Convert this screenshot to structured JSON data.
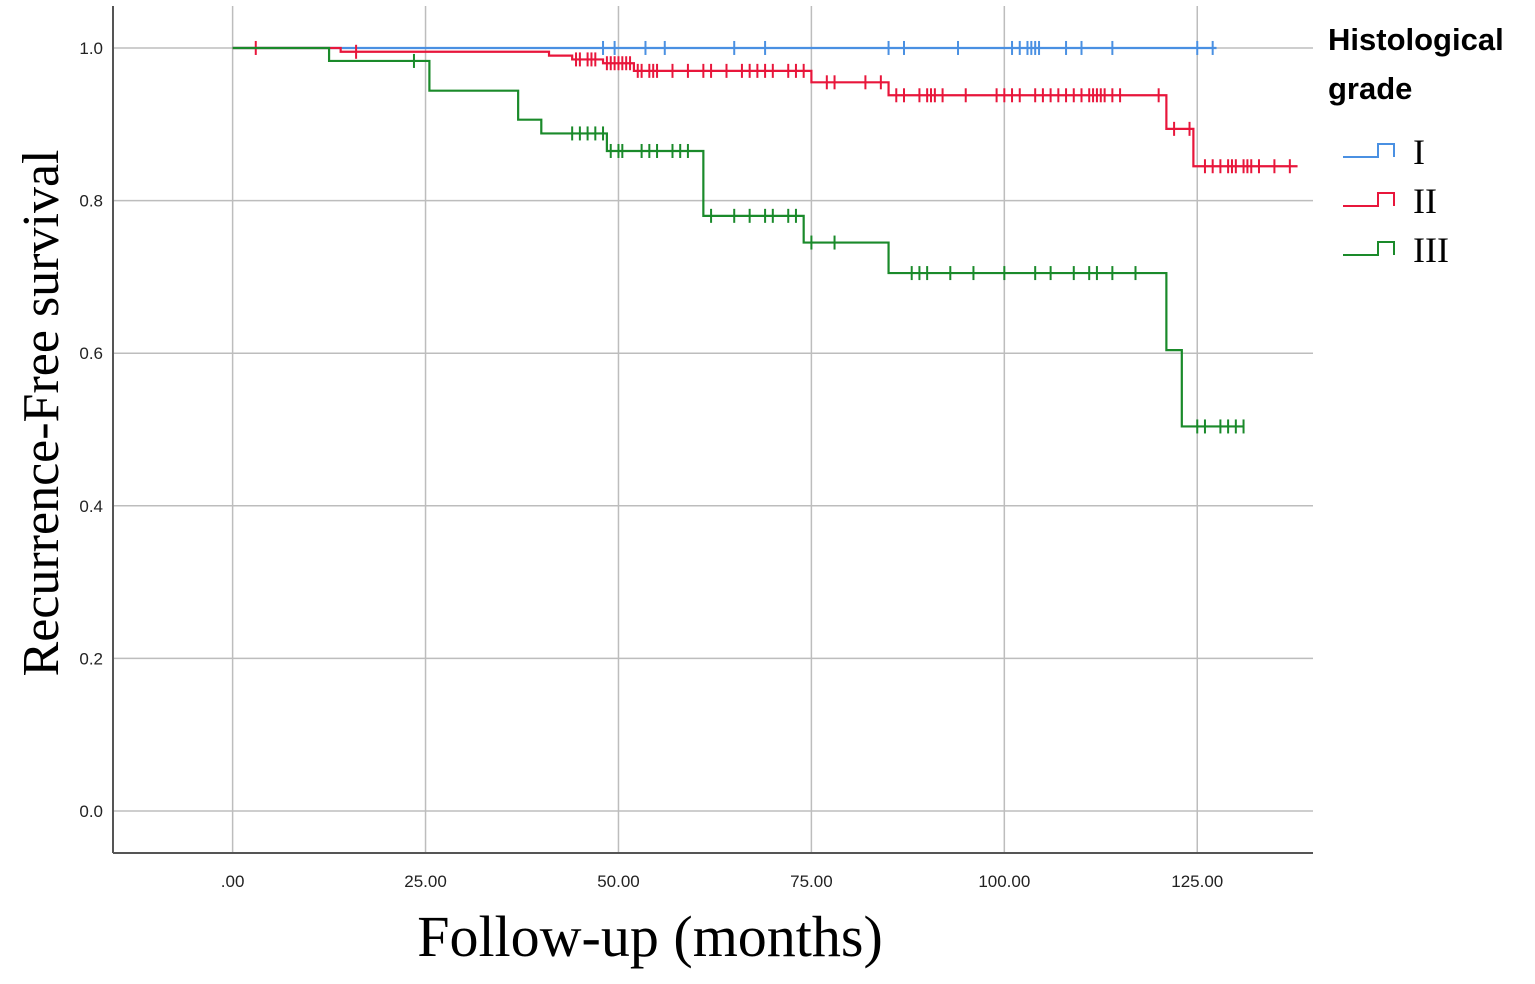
{
  "chart_data": {
    "type": "line",
    "title": "",
    "xlabel": "Follow-up (months)",
    "ylabel": "Recurrence-Free survival",
    "xlim": [
      -15.5,
      140
    ],
    "ylim": [
      -0.055,
      1.055
    ],
    "x_ticks": [
      0,
      25,
      50,
      75,
      100,
      125
    ],
    "x_tick_labels": [
      ".00",
      "25.00",
      "50.00",
      "75.00",
      "100.00",
      "125.00"
    ],
    "y_ticks": [
      0,
      0.2,
      0.4,
      0.6,
      0.8,
      1.0
    ],
    "y_tick_labels": [
      "0.0",
      "0.2",
      "0.4",
      "0.6",
      "0.8",
      "1.0"
    ],
    "grid": true,
    "legend": {
      "title_lines": [
        "Histological",
        "grade"
      ],
      "placement": "right"
    },
    "series": [
      {
        "name": "I",
        "color": "#4a90e2",
        "steps": [
          [
            0,
            1.0
          ]
        ],
        "end_x": 127.5,
        "censored": [
          [
            48,
            1.0
          ],
          [
            49.5,
            1.0
          ],
          [
            53.5,
            1.0
          ],
          [
            56,
            1.0
          ],
          [
            65,
            1.0
          ],
          [
            69,
            1.0
          ],
          [
            85,
            1.0
          ],
          [
            87,
            1.0
          ],
          [
            94,
            1.0
          ],
          [
            101,
            1.0
          ],
          [
            102,
            1.0
          ],
          [
            103,
            1.0
          ],
          [
            103.5,
            1.0
          ],
          [
            104,
            1.0
          ],
          [
            104.5,
            1.0
          ],
          [
            108,
            1.0
          ],
          [
            110,
            1.0
          ],
          [
            114,
            1.0
          ],
          [
            125,
            1.0
          ],
          [
            127,
            1.0
          ]
        ]
      },
      {
        "name": "II",
        "color": "#e8163b",
        "steps": [
          [
            0,
            1.0
          ],
          [
            14,
            0.995
          ],
          [
            41,
            0.99
          ],
          [
            44,
            0.985
          ],
          [
            48,
            0.98
          ],
          [
            52,
            0.97
          ],
          [
            75,
            0.955
          ],
          [
            85,
            0.938
          ],
          [
            121,
            0.894
          ],
          [
            124.5,
            0.845
          ]
        ],
        "end_x": 138,
        "censored": [
          [
            3,
            1.0
          ],
          [
            16,
            0.995
          ],
          [
            44.5,
            0.985
          ],
          [
            45,
            0.985
          ],
          [
            46,
            0.985
          ],
          [
            46.5,
            0.985
          ],
          [
            47,
            0.985
          ],
          [
            48.5,
            0.98
          ],
          [
            49,
            0.98
          ],
          [
            49.5,
            0.98
          ],
          [
            50,
            0.98
          ],
          [
            50.5,
            0.98
          ],
          [
            51,
            0.98
          ],
          [
            51.5,
            0.98
          ],
          [
            52.5,
            0.97
          ],
          [
            53,
            0.97
          ],
          [
            54,
            0.97
          ],
          [
            54.5,
            0.97
          ],
          [
            55,
            0.97
          ],
          [
            57,
            0.97
          ],
          [
            59,
            0.97
          ],
          [
            61,
            0.97
          ],
          [
            62,
            0.97
          ],
          [
            64,
            0.97
          ],
          [
            66,
            0.97
          ],
          [
            67,
            0.97
          ],
          [
            68,
            0.97
          ],
          [
            69,
            0.97
          ],
          [
            70,
            0.97
          ],
          [
            72,
            0.97
          ],
          [
            73,
            0.97
          ],
          [
            74,
            0.97
          ],
          [
            77,
            0.955
          ],
          [
            78,
            0.955
          ],
          [
            82,
            0.955
          ],
          [
            84,
            0.955
          ],
          [
            86,
            0.938
          ],
          [
            87,
            0.938
          ],
          [
            89,
            0.938
          ],
          [
            90,
            0.938
          ],
          [
            90.5,
            0.938
          ],
          [
            91,
            0.938
          ],
          [
            92,
            0.938
          ],
          [
            95,
            0.938
          ],
          [
            99,
            0.938
          ],
          [
            100,
            0.938
          ],
          [
            101,
            0.938
          ],
          [
            102,
            0.938
          ],
          [
            104,
            0.938
          ],
          [
            105,
            0.938
          ],
          [
            106,
            0.938
          ],
          [
            107,
            0.938
          ],
          [
            108,
            0.938
          ],
          [
            109,
            0.938
          ],
          [
            110,
            0.938
          ],
          [
            111,
            0.938
          ],
          [
            111.5,
            0.938
          ],
          [
            112,
            0.938
          ],
          [
            112.5,
            0.938
          ],
          [
            113,
            0.938
          ],
          [
            114,
            0.938
          ],
          [
            115,
            0.938
          ],
          [
            120,
            0.938
          ],
          [
            122,
            0.894
          ],
          [
            124,
            0.894
          ],
          [
            126,
            0.845
          ],
          [
            127,
            0.845
          ],
          [
            128,
            0.845
          ],
          [
            129,
            0.845
          ],
          [
            129.5,
            0.845
          ],
          [
            130,
            0.845
          ],
          [
            131,
            0.845
          ],
          [
            131.5,
            0.845
          ],
          [
            132,
            0.845
          ],
          [
            133,
            0.845
          ],
          [
            135,
            0.845
          ],
          [
            137,
            0.845
          ]
        ]
      },
      {
        "name": "III",
        "color": "#1a8a2a",
        "steps": [
          [
            0,
            1.0
          ],
          [
            12.5,
            0.983
          ],
          [
            25.5,
            0.944
          ],
          [
            37,
            0.906
          ],
          [
            40,
            0.888
          ],
          [
            48.5,
            0.865
          ],
          [
            61,
            0.78
          ],
          [
            74,
            0.745
          ],
          [
            85,
            0.705
          ],
          [
            121,
            0.604
          ],
          [
            123,
            0.504
          ]
        ],
        "end_x": 131,
        "censored": [
          [
            23.5,
            0.983
          ],
          [
            44,
            0.888
          ],
          [
            45,
            0.888
          ],
          [
            46,
            0.888
          ],
          [
            47,
            0.888
          ],
          [
            48,
            0.888
          ],
          [
            49,
            0.865
          ],
          [
            50,
            0.865
          ],
          [
            50.5,
            0.865
          ],
          [
            53,
            0.865
          ],
          [
            54,
            0.865
          ],
          [
            55,
            0.865
          ],
          [
            57,
            0.865
          ],
          [
            58,
            0.865
          ],
          [
            59,
            0.865
          ],
          [
            62,
            0.78
          ],
          [
            65,
            0.78
          ],
          [
            67,
            0.78
          ],
          [
            69,
            0.78
          ],
          [
            70,
            0.78
          ],
          [
            72,
            0.78
          ],
          [
            73,
            0.78
          ],
          [
            75,
            0.745
          ],
          [
            78,
            0.745
          ],
          [
            88,
            0.705
          ],
          [
            89,
            0.705
          ],
          [
            90,
            0.705
          ],
          [
            93,
            0.705
          ],
          [
            96,
            0.705
          ],
          [
            100,
            0.705
          ],
          [
            104,
            0.705
          ],
          [
            106,
            0.705
          ],
          [
            109,
            0.705
          ],
          [
            111,
            0.705
          ],
          [
            112,
            0.705
          ],
          [
            114,
            0.705
          ],
          [
            117,
            0.705
          ],
          [
            125,
            0.504
          ],
          [
            126,
            0.504
          ],
          [
            128,
            0.504
          ],
          [
            129,
            0.504
          ],
          [
            130,
            0.504
          ],
          [
            131,
            0.504
          ]
        ]
      }
    ]
  }
}
